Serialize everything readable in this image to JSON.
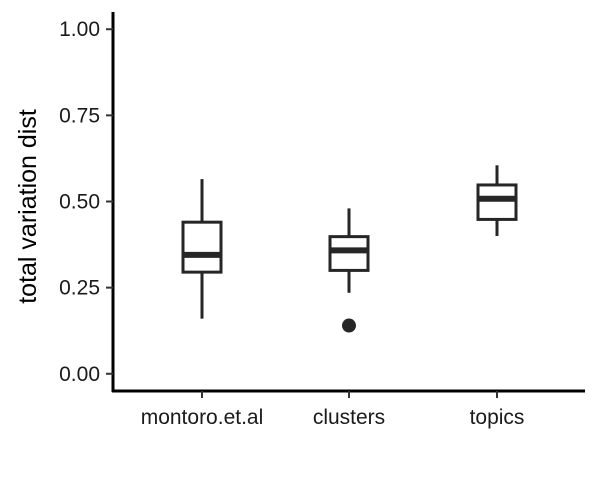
{
  "chart_data": {
    "type": "box",
    "ylabel": "total variation dist",
    "xlabel": "",
    "ylim": [
      -0.05,
      1.05
    ],
    "yticks": [
      0.0,
      0.25,
      0.5,
      0.75,
      1.0
    ],
    "ytick_labels": [
      "0.00",
      "0.25",
      "0.50",
      "0.75",
      "1.00"
    ],
    "categories": [
      "montoro.et.al",
      "clusters",
      "topics"
    ],
    "boxes": [
      {
        "category": "montoro.et.al",
        "whisker_low": 0.16,
        "q1": 0.295,
        "median": 0.345,
        "q3": 0.44,
        "whisker_high": 0.565,
        "outliers": []
      },
      {
        "category": "clusters",
        "whisker_low": 0.235,
        "q1": 0.3,
        "median": 0.358,
        "q3": 0.398,
        "whisker_high": 0.48,
        "outliers": [
          0.14
        ]
      },
      {
        "category": "topics",
        "whisker_low": 0.4,
        "q1": 0.448,
        "median": 0.508,
        "q3": 0.548,
        "whisker_high": 0.605,
        "outliers": []
      }
    ],
    "grid": false,
    "legend": "none",
    "colors": {
      "box_stroke": "#262626",
      "outlier": "#262626",
      "axis": "#000000"
    }
  }
}
